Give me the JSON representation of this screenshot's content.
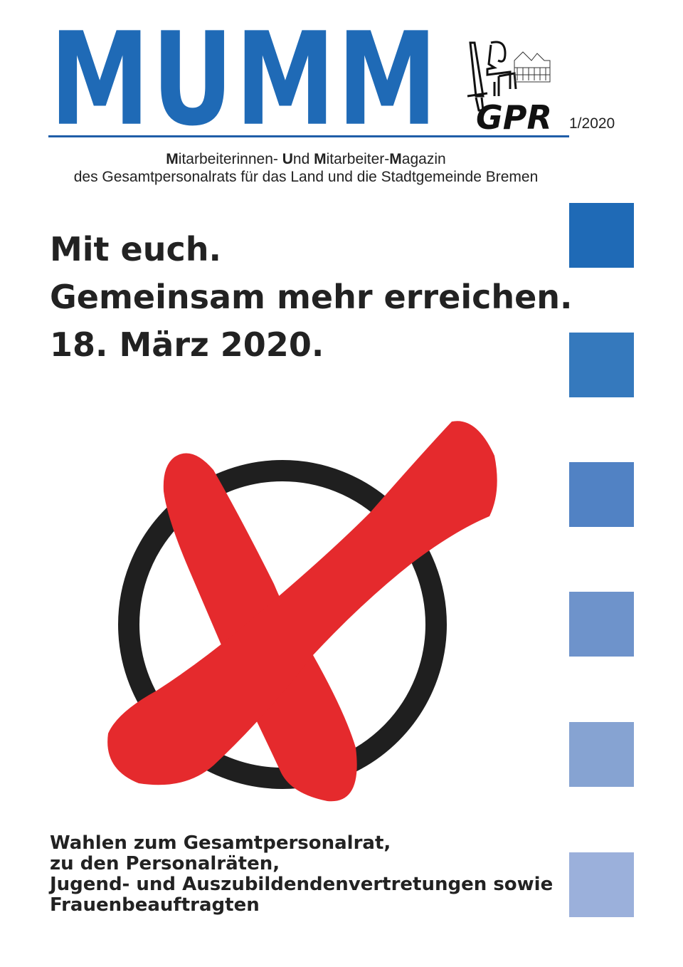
{
  "masthead": {
    "title": "MUMM",
    "logo_text": "GPR",
    "issue": "1/2020",
    "brand_color": "#1f6ab6"
  },
  "subtitle": {
    "line1_parts": [
      "M",
      "itarbeiterinnen- ",
      "U",
      "nd ",
      "M",
      "itarbeiter-",
      "M",
      "agazin"
    ],
    "line2": "des Gesamtpersonalrats für das Land und die Stadtgemeinde Bremen"
  },
  "headline": [
    "Mit euch.",
    "Gemeinsam mehr erreichen.",
    "18. März 2020."
  ],
  "illustration": {
    "name": "ballot-cross-in-circle",
    "cross_color": "#e52a2d",
    "circle_color": "#1f1f1f"
  },
  "bottom_text": [
    "Wahlen zum Gesamtpersonalrat,",
    "zu den Personalräten,",
    "Jugend- und Auszubildendenvertretungen sowie",
    "Frauenbeauftragten"
  ],
  "squares": [
    "#1f6ab6",
    "#3579bd",
    "#5182c4",
    "#6e93cb",
    "#86a3d2",
    "#9bb0db"
  ]
}
